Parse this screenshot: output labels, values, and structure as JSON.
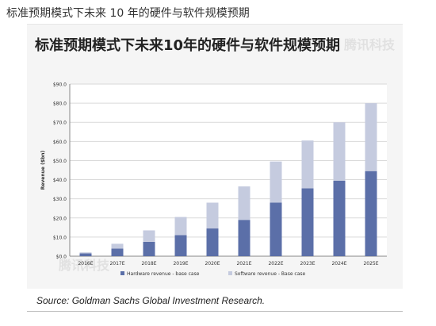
{
  "page_title": "标准预期模式下未来 10 年的硬件与软件规模预期",
  "source": "Source: Goldman Sachs Global Investment Research.",
  "watermark": "腾讯科技",
  "chart_data": {
    "type": "bar",
    "stacked": true,
    "title": "标准预期模式下未来10年的硬件与软件规模预期",
    "ylabel": "Revenue ($bn)",
    "xlabel": "",
    "ylim": [
      0,
      90
    ],
    "ytick_labels": [
      "$0.0",
      "$10.0",
      "$20.0",
      "$30.0",
      "$40.0",
      "$50.0",
      "$60.0",
      "$70.0",
      "$80.0",
      "$90.0"
    ],
    "categories": [
      "2016E",
      "2017E",
      "2018E",
      "2019E",
      "2020E",
      "2021E",
      "2022E",
      "2023E",
      "2024E",
      "2025E"
    ],
    "series": [
      {
        "name": "Hardware revenue - base case",
        "color": "#5b6fa8",
        "values": [
          1.5,
          4.0,
          7.5,
          11.0,
          14.5,
          19.0,
          28.0,
          35.5,
          39.5,
          44.5
        ]
      },
      {
        "name": "Software revenue - Base case",
        "color": "#c5cbdf",
        "values": [
          0.5,
          2.5,
          6.0,
          9.5,
          13.5,
          17.5,
          21.5,
          25.0,
          30.5,
          35.5
        ]
      }
    ],
    "grid": true,
    "legend": "bottom"
  }
}
